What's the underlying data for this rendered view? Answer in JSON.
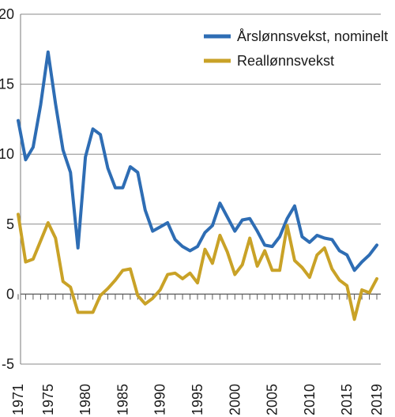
{
  "chart_data": {
    "type": "line",
    "title": "",
    "xlabel": "",
    "ylabel": "",
    "xlim": [
      1971,
      2019
    ],
    "ylim": [
      -5,
      20
    ],
    "y_ticks": [
      20,
      15,
      10,
      5,
      0,
      -5
    ],
    "y_tick_labels": [
      "20",
      "15",
      "10",
      "5",
      "0",
      "-5"
    ],
    "x_tick_labels": [
      "1971",
      "1975",
      "1980",
      "1985",
      "1990",
      "1995",
      "2000",
      "2005",
      "2010",
      "2015",
      "2019"
    ],
    "x_tick_years": [
      1971,
      1975,
      1980,
      1985,
      1990,
      1995,
      2000,
      2005,
      2010,
      2015,
      2019
    ],
    "grid": "horizontal",
    "legend_position": "top-right",
    "x": [
      1971,
      1972,
      1973,
      1974,
      1975,
      1976,
      1977,
      1978,
      1979,
      1980,
      1981,
      1982,
      1983,
      1984,
      1985,
      1986,
      1987,
      1988,
      1989,
      1990,
      1991,
      1992,
      1993,
      1994,
      1995,
      1996,
      1997,
      1998,
      1999,
      2000,
      2001,
      2002,
      2003,
      2004,
      2005,
      2006,
      2007,
      2008,
      2009,
      2010,
      2011,
      2012,
      2013,
      2014,
      2015,
      2016,
      2017,
      2018,
      2019
    ],
    "series": [
      {
        "name": "Årslønnsvekst, nominelt",
        "color": "#2e6db4",
        "values": [
          12.4,
          9.6,
          10.5,
          13.5,
          17.3,
          13.6,
          10.3,
          8.7,
          3.3,
          9.8,
          11.8,
          11.4,
          9.0,
          7.6,
          7.6,
          9.1,
          8.7,
          6.0,
          4.5,
          4.8,
          5.1,
          3.9,
          3.4,
          3.1,
          3.4,
          4.4,
          4.9,
          6.5,
          5.5,
          4.5,
          5.3,
          5.4,
          4.5,
          3.5,
          3.4,
          4.1,
          5.4,
          6.3,
          4.1,
          3.7,
          4.2,
          4.0,
          3.9,
          3.1,
          2.8,
          1.7,
          2.3,
          2.8,
          3.5
        ]
      },
      {
        "name": "Reallønnsvekst",
        "color": "#c9a227",
        "values": [
          5.7,
          2.3,
          2.5,
          3.8,
          5.1,
          4.0,
          0.9,
          0.5,
          -1.3,
          -1.3,
          -1.3,
          -0.1,
          0.4,
          1.0,
          1.7,
          1.8,
          -0.1,
          -0.7,
          -0.3,
          0.3,
          1.4,
          1.5,
          1.1,
          1.5,
          0.8,
          3.2,
          2.2,
          4.2,
          3.0,
          1.4,
          2.1,
          4.0,
          2.0,
          3.1,
          1.7,
          1.7,
          4.9,
          2.4,
          1.9,
          1.2,
          2.8,
          3.3,
          1.8,
          1.0,
          0.6,
          -1.8,
          0.3,
          0.1,
          1.1
        ]
      }
    ]
  }
}
